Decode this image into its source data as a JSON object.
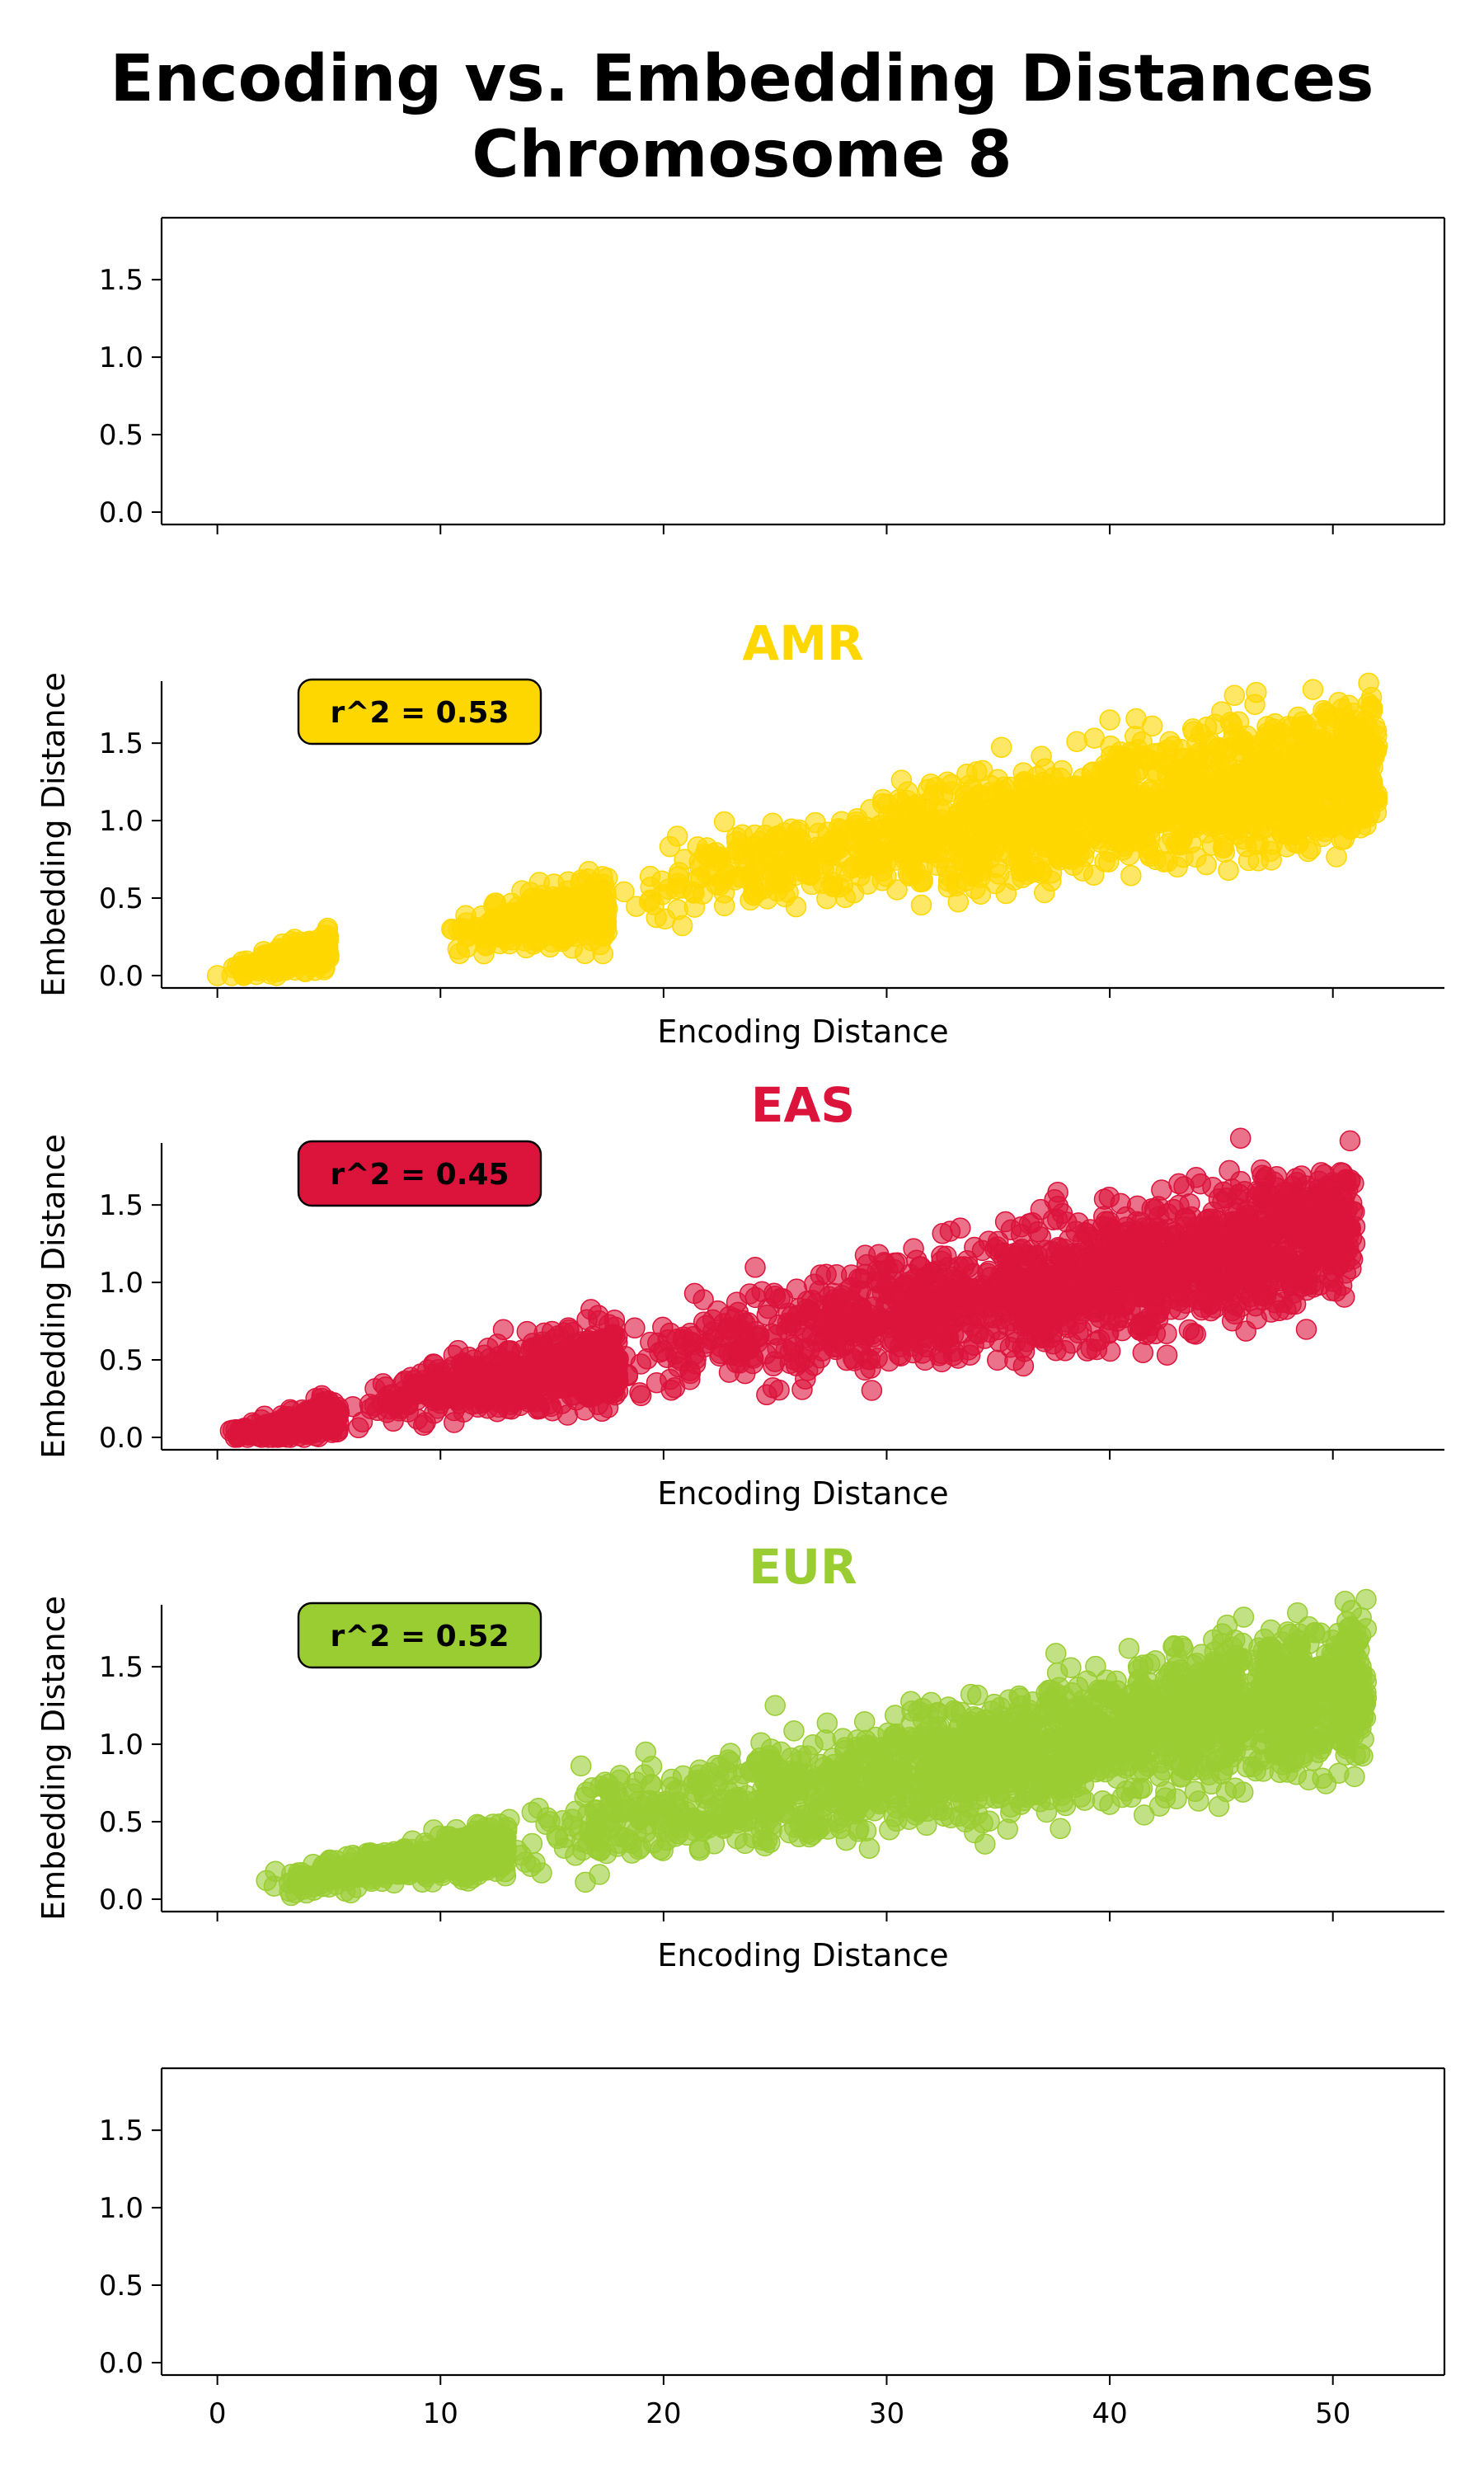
{
  "figure": {
    "title_line1": "Encoding vs. Embedding Distances",
    "title_line2": "Chromosome 8"
  },
  "chart_data": [
    {
      "type": "scatter",
      "title": "",
      "xlabel": "",
      "ylabel": "",
      "xlim": [
        -2.5,
        55
      ],
      "ylim": [
        -0.08,
        1.9
      ],
      "yticks": [
        "0.0",
        "0.5",
        "1.0",
        "1.5"
      ],
      "xticks": [
        "0",
        "10",
        "20",
        "30",
        "40",
        "50"
      ],
      "show_xticklabels": false,
      "spines": "all",
      "annotation": "",
      "series": []
    },
    {
      "type": "scatter",
      "title": "AMR",
      "title_color": "#FFD700",
      "xlabel": "Encoding Distance",
      "ylabel": "Embedding Distance",
      "xlim": [
        -2.5,
        55
      ],
      "ylim": [
        -0.08,
        1.9
      ],
      "yticks": [
        "0.0",
        "0.5",
        "1.0",
        "1.5"
      ],
      "xticks": [
        "0",
        "10",
        "20",
        "30",
        "40",
        "50"
      ],
      "show_xticklabels": false,
      "spines": "left-bottom",
      "annotation": "r^2 = 0.53",
      "series": [
        {
          "color": "#FFD700",
          "clusters": [
            {
              "x0": 0.5,
              "x1": 5.0,
              "slope": 0.035,
              "intercept": 0.0,
              "spread": 0.05
            },
            {
              "x0": 10.5,
              "x1": 17.5,
              "slope": 0.025,
              "intercept": 0.0,
              "spread": 0.1
            },
            {
              "x0": 18.0,
              "x1": 52.0,
              "slope": 0.024,
              "intercept": 0.12,
              "spread": 0.2
            }
          ],
          "points": [
            {
              "x": 0.0,
              "y": 0.0
            },
            {
              "x": 5.0,
              "y": 0.13
            },
            {
              "x": 10.5,
              "y": 0.3
            },
            {
              "x": 11.2,
              "y": 0.25
            },
            {
              "x": 13.5,
              "y": 0.4
            },
            {
              "x": 16.8,
              "y": 0.55
            },
            {
              "x": 46.5,
              "y": 1.75
            },
            {
              "x": 51.5,
              "y": 1.28
            },
            {
              "x": 50.5,
              "y": 0.88
            },
            {
              "x": 40.0,
              "y": 1.65
            }
          ]
        }
      ]
    },
    {
      "type": "scatter",
      "title": "EAS",
      "title_color": "#DC143C",
      "xlabel": "Encoding Distance",
      "ylabel": "Embedding Distance",
      "xlim": [
        -2.5,
        55
      ],
      "ylim": [
        -0.08,
        1.9
      ],
      "yticks": [
        "0.0",
        "0.5",
        "1.0",
        "1.5"
      ],
      "xticks": [
        "0",
        "10",
        "20",
        "30",
        "40",
        "50"
      ],
      "show_xticklabels": false,
      "spines": "left-bottom",
      "annotation": "r^2 = 0.45",
      "series": [
        {
          "color": "#DC143C",
          "clusters": [
            {
              "x0": 0.5,
              "x1": 5.5,
              "slope": 0.025,
              "intercept": 0.0,
              "spread": 0.05
            },
            {
              "x0": 6.0,
              "x1": 18.0,
              "slope": 0.025,
              "intercept": 0.05,
              "spread": 0.12
            },
            {
              "x0": 17.0,
              "x1": 51.0,
              "slope": 0.026,
              "intercept": 0.02,
              "spread": 0.22
            }
          ],
          "points": [
            {
              "x": 0.8,
              "y": 0.0
            },
            {
              "x": 6.5,
              "y": 0.1
            },
            {
              "x": 12.0,
              "y": 0.32
            },
            {
              "x": 20.5,
              "y": 0.32
            },
            {
              "x": 47.0,
              "y": 1.68
            },
            {
              "x": 50.5,
              "y": 1.25
            },
            {
              "x": 16.5,
              "y": 0.5
            }
          ]
        }
      ]
    },
    {
      "type": "scatter",
      "title": "EUR",
      "title_color": "#9ACD32",
      "xlabel": "Encoding Distance",
      "ylabel": "Embedding Distance",
      "xlim": [
        -2.5,
        55
      ],
      "ylim": [
        -0.08,
        1.9
      ],
      "yticks": [
        "0.0",
        "0.5",
        "1.0",
        "1.5"
      ],
      "xticks": [
        "0",
        "10",
        "20",
        "30",
        "40",
        "50"
      ],
      "show_xticklabels": false,
      "spines": "left-bottom",
      "annotation": "r^2 = 0.52",
      "series": [
        {
          "color": "#9ACD32",
          "clusters": [
            {
              "x0": 2.5,
              "x1": 13.0,
              "slope": 0.022,
              "intercept": 0.05,
              "spread": 0.07
            },
            {
              "x0": 12.0,
              "x1": 51.5,
              "slope": 0.027,
              "intercept": 0.0,
              "spread": 0.22
            }
          ],
          "points": [
            {
              "x": 2.2,
              "y": 0.12
            },
            {
              "x": 16.3,
              "y": 0.86
            },
            {
              "x": 19.2,
              "y": 0.95
            },
            {
              "x": 25.0,
              "y": 1.25
            },
            {
              "x": 46.0,
              "y": 1.82
            },
            {
              "x": 51.5,
              "y": 1.3
            },
            {
              "x": 50.5,
              "y": 1.0
            }
          ]
        }
      ]
    },
    {
      "type": "scatter",
      "title": "",
      "xlabel": "",
      "ylabel": "",
      "xlim": [
        -2.5,
        55
      ],
      "ylim": [
        -0.08,
        1.9
      ],
      "yticks": [
        "0.0",
        "0.5",
        "1.0",
        "1.5"
      ],
      "xticks": [
        "0",
        "10",
        "20",
        "30",
        "40",
        "50"
      ],
      "show_xticklabels": true,
      "spines": "all",
      "annotation": "",
      "series": []
    }
  ]
}
